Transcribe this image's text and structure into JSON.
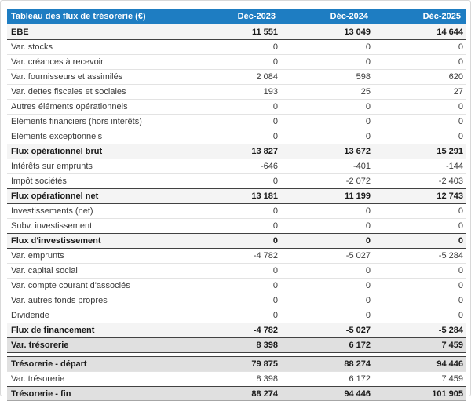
{
  "table": {
    "title": "Tableau des flux de trésorerie (€)",
    "columns": [
      "Déc-2023",
      "Déc-2024",
      "Déc-2025"
    ],
    "colors": {
      "header_bg": "#1e7dc2",
      "header_text": "#ffffff",
      "section_row_bg": "#f4f4f4",
      "total_row_bg": "#e0e0e0",
      "border_dark": "#424242",
      "border_light": "#e3e3e3"
    },
    "rows": [
      {
        "label": "EBE",
        "values": [
          "11 551",
          "13 049",
          "14 644"
        ],
        "style": "section",
        "border_top": "none"
      },
      {
        "label": "Var. stocks",
        "values": [
          "0",
          "0",
          "0"
        ],
        "style": "normal",
        "border_top": "dark"
      },
      {
        "label": "Var. créances à recevoir",
        "values": [
          "0",
          "0",
          "0"
        ],
        "style": "normal",
        "border_top": "light"
      },
      {
        "label": "Var. fournisseurs et assimilés",
        "values": [
          "2 084",
          "598",
          "620"
        ],
        "style": "normal",
        "border_top": "light"
      },
      {
        "label": "Var. dettes fiscales et sociales",
        "values": [
          "193",
          "25",
          "27"
        ],
        "style": "normal",
        "border_top": "light"
      },
      {
        "label": "Autres éléments opérationnels",
        "values": [
          "0",
          "0",
          "0"
        ],
        "style": "normal",
        "border_top": "light"
      },
      {
        "label": "Eléments financiers (hors intérêts)",
        "values": [
          "0",
          "0",
          "0"
        ],
        "style": "normal",
        "border_top": "light"
      },
      {
        "label": "Eléments exceptionnels",
        "values": [
          "0",
          "0",
          "0"
        ],
        "style": "normal",
        "border_top": "light"
      },
      {
        "label": "Flux opérationnel brut",
        "values": [
          "13 827",
          "13 672",
          "15 291"
        ],
        "style": "section",
        "border_top": "dark"
      },
      {
        "label": "Intérêts sur emprunts",
        "values": [
          "-646",
          "-401",
          "-144"
        ],
        "style": "normal",
        "border_top": "dark"
      },
      {
        "label": "Impôt sociétés",
        "values": [
          "0",
          "-2 072",
          "-2 403"
        ],
        "style": "normal",
        "border_top": "light"
      },
      {
        "label": "Flux opérationnel net",
        "values": [
          "13 181",
          "11 199",
          "12 743"
        ],
        "style": "section",
        "border_top": "dark"
      },
      {
        "label": "Investissements (net)",
        "values": [
          "0",
          "0",
          "0"
        ],
        "style": "normal",
        "border_top": "dark"
      },
      {
        "label": "Subv. investissement",
        "values": [
          "0",
          "0",
          "0"
        ],
        "style": "normal",
        "border_top": "light"
      },
      {
        "label": "Flux d'investissement",
        "values": [
          "0",
          "0",
          "0"
        ],
        "style": "section",
        "border_top": "dark"
      },
      {
        "label": "Var. emprunts",
        "values": [
          "-4 782",
          "-5 027",
          "-5 284"
        ],
        "style": "normal",
        "border_top": "dark"
      },
      {
        "label": "Var. capital social",
        "values": [
          "0",
          "0",
          "0"
        ],
        "style": "normal",
        "border_top": "light"
      },
      {
        "label": "Var. compte courant d'associés",
        "values": [
          "0",
          "0",
          "0"
        ],
        "style": "normal",
        "border_top": "light"
      },
      {
        "label": "Var. autres fonds propres",
        "values": [
          "0",
          "0",
          "0"
        ],
        "style": "normal",
        "border_top": "light"
      },
      {
        "label": "Dividende",
        "values": [
          "0",
          "0",
          "0"
        ],
        "style": "normal",
        "border_top": "light"
      },
      {
        "label": "Flux de financement",
        "values": [
          "-4 782",
          "-5 027",
          "-5 284"
        ],
        "style": "section",
        "border_top": "dark"
      },
      {
        "label": "Var. trésorerie",
        "values": [
          "8 398",
          "6 172",
          "7 459"
        ],
        "style": "total",
        "border_top": "dark"
      },
      {
        "label": "",
        "values": [
          "",
          "",
          ""
        ],
        "style": "spacer",
        "border_top": "dark"
      },
      {
        "label": "Trésorerie - départ",
        "values": [
          "79 875",
          "88 274",
          "94 446"
        ],
        "style": "total",
        "border_top": "dark"
      },
      {
        "label": "Var. trésorerie",
        "values": [
          "8 398",
          "6 172",
          "7 459"
        ],
        "style": "normal",
        "border_top": "light"
      },
      {
        "label": "Trésorerie - fin",
        "values": [
          "88 274",
          "94 446",
          "101 905"
        ],
        "style": "total",
        "border_top": "dark",
        "border_bottom": "medium"
      }
    ]
  }
}
